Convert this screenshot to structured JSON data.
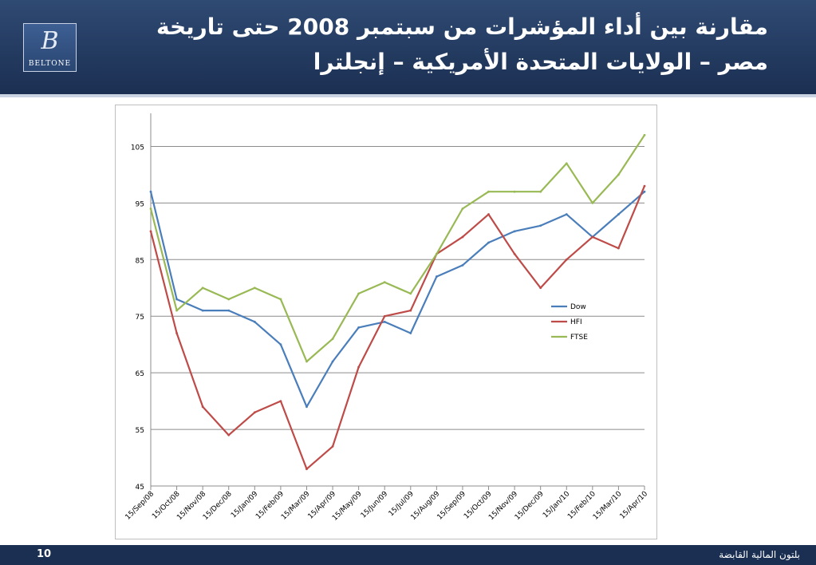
{
  "header": {
    "title_line1": "مقارنة بين أداء المؤشرات من سبتمبر 2008 حتى تاريخة",
    "title_line2": "مصر – الولايات المتحدة الأمريكية – إنجلترا"
  },
  "logo": {
    "text": "BELTONE",
    "mark": "B"
  },
  "footer": {
    "page_number": "10",
    "company": "بلتون المالية القابضة"
  },
  "colors": {
    "header_bg": "#1b2f52",
    "dow": "#4a7ebb",
    "hfi": "#be4b48",
    "ftse": "#98b954"
  },
  "chart_data": {
    "type": "line",
    "x": [
      "15/Sep/08",
      "15/Oct/08",
      "15/Nov/08",
      "15/Dec/08",
      "15/Jan/09",
      "15/Feb/09",
      "15/Mar/09",
      "15/Apr/09",
      "15/May/09",
      "15/Jun/09",
      "15/Jul/09",
      "15/Aug/09",
      "15/Sep/09",
      "15/Oct/09",
      "15/Nov/09",
      "15/Dec/09",
      "15/Jan/10",
      "15/Feb/10",
      "15/Mar/10",
      "15/Apr/10"
    ],
    "y_ticks": [
      "105",
      "95",
      "85",
      "75",
      "65",
      "55",
      "45"
    ],
    "ylim": [
      45,
      110
    ],
    "grid": true,
    "legend_position": "right",
    "series": [
      {
        "name": "Dow",
        "color": "#4a7ebb",
        "values": [
          97,
          78,
          76,
          76,
          74,
          70,
          59,
          67,
          73,
          74,
          72,
          82,
          84,
          88,
          90,
          91,
          93,
          89,
          93,
          97
        ]
      },
      {
        "name": "HFI",
        "color": "#be4b48",
        "values": [
          90,
          72,
          59,
          54,
          58,
          60,
          48,
          52,
          66,
          75,
          76,
          86,
          89,
          93,
          86,
          80,
          85,
          89,
          87,
          98
        ]
      },
      {
        "name": "FTSE",
        "color": "#98b954",
        "values": [
          94,
          76,
          80,
          78,
          80,
          78,
          67,
          71,
          79,
          81,
          79,
          86,
          94,
          97,
          97,
          97,
          102,
          95,
          100,
          107
        ]
      }
    ]
  }
}
